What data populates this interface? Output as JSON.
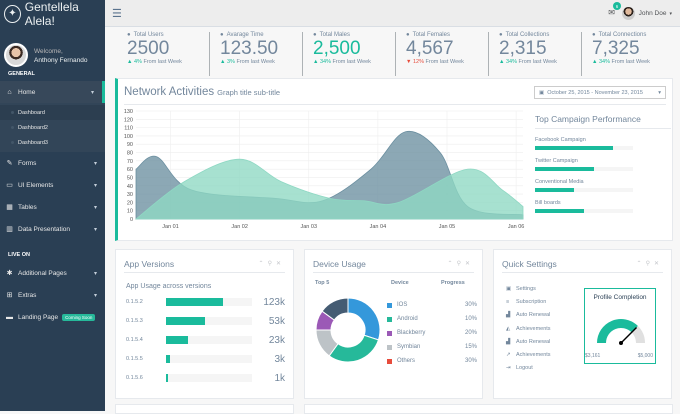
{
  "brand": {
    "title": "Gentellela Alela!",
    "icon": "paw-icon"
  },
  "profile": {
    "welcome": "Welcome,",
    "name": "Anthony Fernando"
  },
  "sidebar": {
    "section_general": "GENERAL",
    "section_live": "LIVE ON",
    "items": [
      {
        "label": "Home",
        "icon": "home-icon"
      },
      {
        "label": "Forms",
        "icon": "edit-icon"
      },
      {
        "label": "UI Elements",
        "icon": "desktop-icon"
      },
      {
        "label": "Tables",
        "icon": "table-icon"
      },
      {
        "label": "Data Presentation",
        "icon": "bar-chart-icon"
      },
      {
        "label": "Additional Pages",
        "icon": "bug-icon"
      },
      {
        "label": "Extras",
        "icon": "windows-icon"
      },
      {
        "label": "Landing Page",
        "icon": "laptop-icon"
      }
    ],
    "subitems": [
      "Dashboard",
      "Dashboard2",
      "Dashboard3"
    ],
    "coming_soon": "Coming Soon"
  },
  "topbar": {
    "user": "John Doe",
    "mail_count": "6"
  },
  "stats": [
    {
      "title": "Total Users",
      "value": "2500",
      "delta": "4%",
      "suffix": "From last Week",
      "dir": "up"
    },
    {
      "title": "Avarage Time",
      "value": "123.50",
      "delta": "3%",
      "suffix": "From last Week",
      "dir": "up"
    },
    {
      "title": "Total Males",
      "value": "2,500",
      "delta": "34%",
      "suffix": "From last Week",
      "dir": "up"
    },
    {
      "title": "Total Females",
      "value": "4,567",
      "delta": "12%",
      "suffix": "From last Week",
      "dir": "down"
    },
    {
      "title": "Total Collections",
      "value": "2,315",
      "delta": "34%",
      "suffix": "From last Week",
      "dir": "up"
    },
    {
      "title": "Total Connections",
      "value": "7,325",
      "delta": "34%",
      "suffix": "From last Week",
      "dir": "up"
    }
  ],
  "network": {
    "title": "Network Activities",
    "subtitle": "Graph title sub-title",
    "daterange": "October 25, 2015 - November 23, 2015"
  },
  "chart_data": {
    "type": "area",
    "x": [
      "Jan 01",
      "Jan 02",
      "Jan 03",
      "Jan 04",
      "Jan 05",
      "Jan 06"
    ],
    "ylim": [
      0,
      130
    ],
    "yticks": [
      0,
      10,
      20,
      30,
      40,
      50,
      60,
      70,
      80,
      90,
      100,
      110,
      120,
      130
    ],
    "series": [
      {
        "points": [
          [
            0.5,
            60
          ],
          [
            0.8,
            75
          ],
          [
            1.3,
            35
          ],
          [
            2.5,
            25
          ],
          [
            3.2,
            22
          ],
          [
            3.9,
            60
          ],
          [
            4.4,
            105
          ],
          [
            4.9,
            80
          ],
          [
            5.3,
            15
          ],
          [
            6.1,
            5
          ]
        ],
        "color": "#6b8fa0"
      },
      {
        "points": [
          [
            0.5,
            0
          ],
          [
            1.2,
            45
          ],
          [
            2.0,
            72
          ],
          [
            2.6,
            45
          ],
          [
            3.3,
            25
          ],
          [
            3.8,
            22
          ],
          [
            4.3,
            20
          ],
          [
            5.3,
            60
          ],
          [
            5.8,
            35
          ],
          [
            6.1,
            15
          ]
        ],
        "color": "#8ed8c3"
      }
    ]
  },
  "campaign": {
    "title": "Top Campaign Performance",
    "rows": [
      {
        "label": "Facebook Campaign",
        "value": 80
      },
      {
        "label": "Twitter Campaign",
        "value": 60
      },
      {
        "label": "Conventional Media",
        "value": 40
      },
      {
        "label": "Bill boards",
        "value": 50
      }
    ]
  },
  "app_versions": {
    "title": "App Versions",
    "subtitle": "App Usage across versions",
    "rows": [
      {
        "label": "0.1.5.2",
        "value": "123k",
        "fill": 0.66
      },
      {
        "label": "0.1.5.3",
        "value": "53k",
        "fill": 0.45
      },
      {
        "label": "0.1.5.4",
        "value": "23k",
        "fill": 0.25
      },
      {
        "label": "0.1.5.5",
        "value": "3k",
        "fill": 0.05
      },
      {
        "label": "0.1.5.6",
        "value": "1k",
        "fill": 0.02
      }
    ]
  },
  "device_usage": {
    "title": "Device Usage",
    "col_top": "Top 5",
    "col_device": "Device",
    "col_progress": "Progress",
    "rows": [
      {
        "label": "IOS",
        "pct": "30%",
        "color": "#3498db",
        "value": 30
      },
      {
        "label": "Android",
        "pct": "10%",
        "color": "#26b99a",
        "value": 10
      },
      {
        "label": "Blackberry",
        "pct": "20%",
        "color": "#9b59b6",
        "value": 20
      },
      {
        "label": "Symbian",
        "pct": "15%",
        "color": "#bdc3c7",
        "value": 15
      },
      {
        "label": "Others",
        "pct": "30%",
        "color": "#e74c3c",
        "value": 30
      }
    ],
    "donut": [
      {
        "value": 30,
        "color": "#3498db"
      },
      {
        "value": 30,
        "color": "#26b99a"
      },
      {
        "value": 15,
        "color": "#bdc3c7"
      },
      {
        "value": 10,
        "color": "#9b59b6"
      },
      {
        "value": 15,
        "color": "#455c73"
      }
    ]
  },
  "quick_settings": {
    "title": "Quick Settings",
    "items": [
      {
        "label": "Settings",
        "icon": "calendar-icon"
      },
      {
        "label": "Subscription",
        "icon": "bars-icon"
      },
      {
        "label": "Auto Renewal",
        "icon": "chart-icon"
      },
      {
        "label": "Achievements",
        "icon": "area-chart-icon"
      },
      {
        "label": "Auto Renewal",
        "icon": "chart-icon"
      },
      {
        "label": "Achievements",
        "icon": "line-chart-icon"
      },
      {
        "label": "Logout",
        "icon": "signout-icon"
      }
    ],
    "profile_title": "Profile Completion",
    "min": "$3,161",
    "max": "$5,000",
    "completion": 0.75
  }
}
